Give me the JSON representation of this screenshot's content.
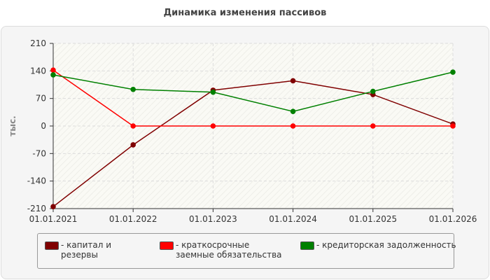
{
  "chart_data": {
    "type": "line",
    "title": "Динамика изменения пассивов",
    "ylabel": "тыс.",
    "xlabel": "",
    "x": [
      "01.01.2021",
      "01.01.2022",
      "01.01.2023",
      "01.01.2024",
      "01.01.2025",
      "01.01.2026"
    ],
    "yticks": [
      "210",
      "140",
      "70",
      "0",
      "-70",
      "-140",
      "-210"
    ],
    "ylim": [
      -210,
      210
    ],
    "grid": true,
    "legend_position": "bottom",
    "series": [
      {
        "name": "- капитал и резервы",
        "color": "#800000",
        "values": [
          -205,
          -48,
          91,
          115,
          80,
          5
        ]
      },
      {
        "name": "- краткосрочные заемные обязательства",
        "color": "#ff0000",
        "values": [
          142,
          0,
          0,
          0,
          0,
          0
        ]
      },
      {
        "name": "- кредиторская задолженность",
        "color": "#008000",
        "values": [
          130,
          93,
          86,
          37,
          88,
          137
        ]
      }
    ]
  }
}
